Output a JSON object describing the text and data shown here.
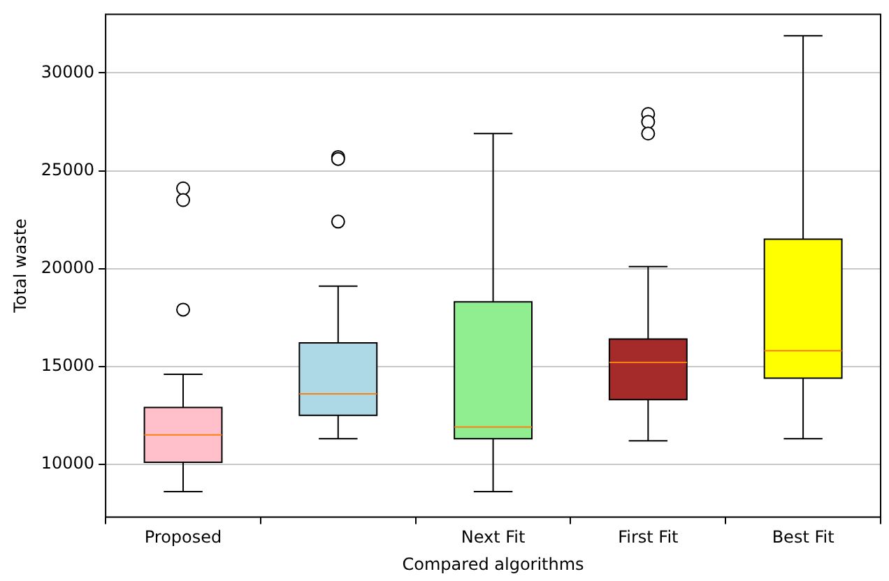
{
  "chart_data": {
    "type": "box",
    "xlabel": "Compared algorithms",
    "ylabel": "Total waste",
    "categories": [
      "Proposed",
      null,
      "Next Fit",
      "First Fit",
      "Best Fit"
    ],
    "colors": [
      "#ffc0cb",
      "#add8e6",
      "#90ee90",
      "#a52a2a",
      "#ffff00"
    ],
    "boxes": [
      {
        "low": 8600,
        "q1": 10100,
        "median": 11500,
        "q3": 12900,
        "high": 14600,
        "outliers": [
          17900,
          23500,
          24100
        ]
      },
      {
        "low": 11300,
        "q1": 12500,
        "median": 13600,
        "q3": 16200,
        "high": 19100,
        "outliers": [
          22400,
          25600,
          25700
        ]
      },
      {
        "low": 8600,
        "q1": 11300,
        "median": 11900,
        "q3": 18300,
        "high": 26900
      },
      {
        "low": 11200,
        "q1": 13300,
        "median": 15200,
        "q3": 16400,
        "high": 20100,
        "outliers": [
          26900,
          27500,
          27900
        ]
      },
      {
        "low": 11300,
        "q1": 14400,
        "median": 15800,
        "q3": 21500,
        "high": 31900
      }
    ],
    "ylim": [
      7300,
      33000
    ],
    "yticks": [
      10000,
      15000,
      20000,
      25000,
      30000
    ],
    "grid": "y"
  }
}
